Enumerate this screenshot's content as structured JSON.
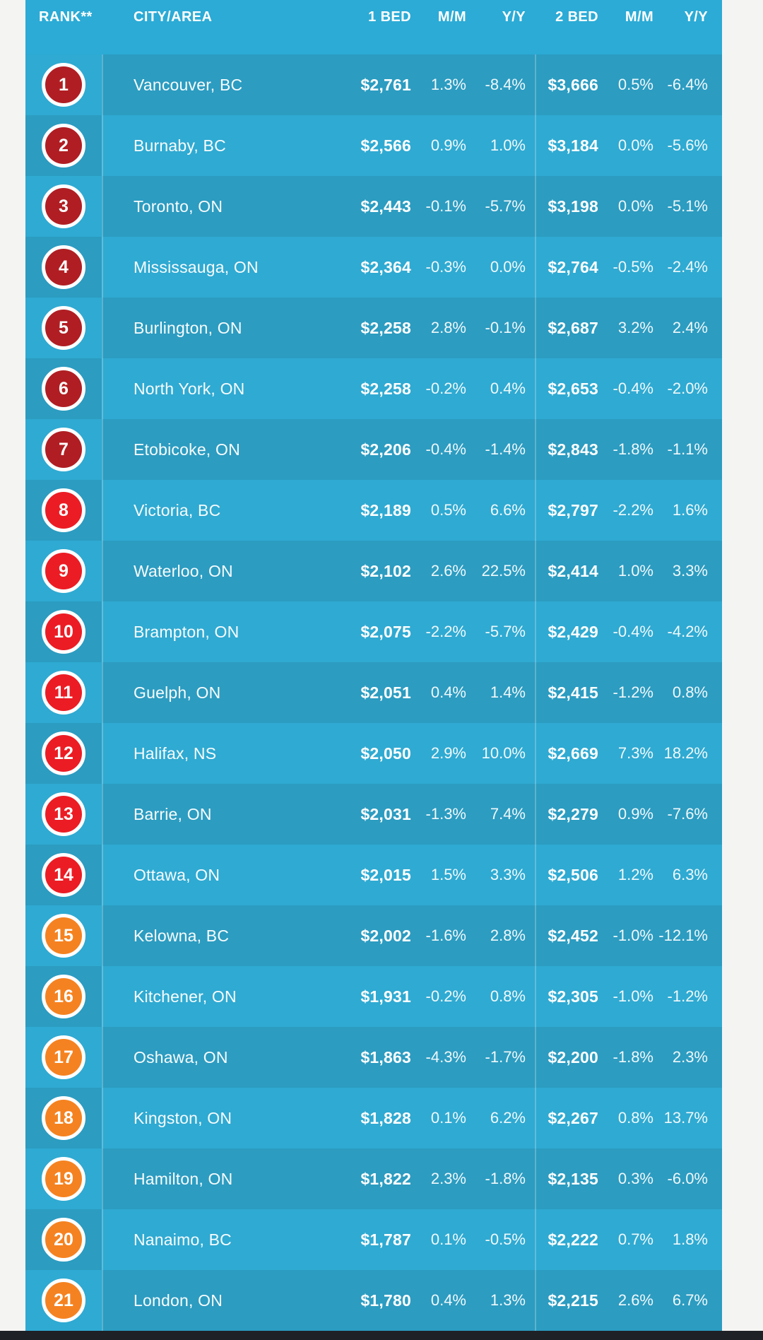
{
  "colors": {
    "page_bg": "#F4F4F3",
    "header_bg": "#2BABD6",
    "row_dark": "#2C9CC1",
    "row_light": "#2FAAD2",
    "divider": "rgba(255,255,255,0.24)",
    "text": "#FFFFFF",
    "bottom_bar": "#1E2126",
    "tier_dark_red": "#B01E23",
    "tier_red": "#EC1C24",
    "tier_orange": "#F58220",
    "badge_ring": "#FFFFFF"
  },
  "chart_data": {
    "type": "table",
    "title": "",
    "columns": [
      "RANK**",
      "CITY/AREA",
      "1 BED",
      "M/M",
      "Y/Y",
      "2 BED",
      "M/M",
      "Y/Y"
    ],
    "rows": [
      {
        "rank": "1",
        "tier": "dark_red",
        "city": "Vancouver, BC",
        "bed1": "$2,761",
        "bed1_mm": "1.3%",
        "bed1_yy": "-8.4%",
        "bed2": "$3,666",
        "bed2_mm": "0.5%",
        "bed2_yy": "-6.4%"
      },
      {
        "rank": "2",
        "tier": "dark_red",
        "city": "Burnaby, BC",
        "bed1": "$2,566",
        "bed1_mm": "0.9%",
        "bed1_yy": "1.0%",
        "bed2": "$3,184",
        "bed2_mm": "0.0%",
        "bed2_yy": "-5.6%"
      },
      {
        "rank": "3",
        "tier": "dark_red",
        "city": "Toronto, ON",
        "bed1": "$2,443",
        "bed1_mm": "-0.1%",
        "bed1_yy": "-5.7%",
        "bed2": "$3,198",
        "bed2_mm": "0.0%",
        "bed2_yy": "-5.1%"
      },
      {
        "rank": "4",
        "tier": "dark_red",
        "city": "Mississauga, ON",
        "bed1": "$2,364",
        "bed1_mm": "-0.3%",
        "bed1_yy": "0.0%",
        "bed2": "$2,764",
        "bed2_mm": "-0.5%",
        "bed2_yy": "-2.4%"
      },
      {
        "rank": "5",
        "tier": "dark_red",
        "city": "Burlington, ON",
        "bed1": "$2,258",
        "bed1_mm": "2.8%",
        "bed1_yy": "-0.1%",
        "bed2": "$2,687",
        "bed2_mm": "3.2%",
        "bed2_yy": "2.4%"
      },
      {
        "rank": "6",
        "tier": "dark_red",
        "city": "North York, ON",
        "bed1": "$2,258",
        "bed1_mm": "-0.2%",
        "bed1_yy": "0.4%",
        "bed2": "$2,653",
        "bed2_mm": "-0.4%",
        "bed2_yy": "-2.0%"
      },
      {
        "rank": "7",
        "tier": "dark_red",
        "city": "Etobicoke, ON",
        "bed1": "$2,206",
        "bed1_mm": "-0.4%",
        "bed1_yy": "-1.4%",
        "bed2": "$2,843",
        "bed2_mm": "-1.8%",
        "bed2_yy": "-1.1%"
      },
      {
        "rank": "8",
        "tier": "red",
        "city": "Victoria, BC",
        "bed1": "$2,189",
        "bed1_mm": "0.5%",
        "bed1_yy": "6.6%",
        "bed2": "$2,797",
        "bed2_mm": "-2.2%",
        "bed2_yy": "1.6%"
      },
      {
        "rank": "9",
        "tier": "red",
        "city": "Waterloo, ON",
        "bed1": "$2,102",
        "bed1_mm": "2.6%",
        "bed1_yy": "22.5%",
        "bed2": "$2,414",
        "bed2_mm": "1.0%",
        "bed2_yy": "3.3%"
      },
      {
        "rank": "10",
        "tier": "red",
        "city": "Brampton, ON",
        "bed1": "$2,075",
        "bed1_mm": "-2.2%",
        "bed1_yy": "-5.7%",
        "bed2": "$2,429",
        "bed2_mm": "-0.4%",
        "bed2_yy": "-4.2%"
      },
      {
        "rank": "11",
        "tier": "red",
        "city": "Guelph, ON",
        "bed1": "$2,051",
        "bed1_mm": "0.4%",
        "bed1_yy": "1.4%",
        "bed2": "$2,415",
        "bed2_mm": "-1.2%",
        "bed2_yy": "0.8%"
      },
      {
        "rank": "12",
        "tier": "red",
        "city": "Halifax, NS",
        "bed1": "$2,050",
        "bed1_mm": "2.9%",
        "bed1_yy": "10.0%",
        "bed2": "$2,669",
        "bed2_mm": "7.3%",
        "bed2_yy": "18.2%"
      },
      {
        "rank": "13",
        "tier": "red",
        "city": "Barrie, ON",
        "bed1": "$2,031",
        "bed1_mm": "-1.3%",
        "bed1_yy": "7.4%",
        "bed2": "$2,279",
        "bed2_mm": "0.9%",
        "bed2_yy": "-7.6%"
      },
      {
        "rank": "14",
        "tier": "red",
        "city": "Ottawa, ON",
        "bed1": "$2,015",
        "bed1_mm": "1.5%",
        "bed1_yy": "3.3%",
        "bed2": "$2,506",
        "bed2_mm": "1.2%",
        "bed2_yy": "6.3%"
      },
      {
        "rank": "15",
        "tier": "orange",
        "city": "Kelowna, BC",
        "bed1": "$2,002",
        "bed1_mm": "-1.6%",
        "bed1_yy": "2.8%",
        "bed2": "$2,452",
        "bed2_mm": "-1.0%",
        "bed2_yy": "-12.1%"
      },
      {
        "rank": "16",
        "tier": "orange",
        "city": "Kitchener, ON",
        "bed1": "$1,931",
        "bed1_mm": "-0.2%",
        "bed1_yy": "0.8%",
        "bed2": "$2,305",
        "bed2_mm": "-1.0%",
        "bed2_yy": "-1.2%"
      },
      {
        "rank": "17",
        "tier": "orange",
        "city": "Oshawa, ON",
        "bed1": "$1,863",
        "bed1_mm": "-4.3%",
        "bed1_yy": "-1.7%",
        "bed2": "$2,200",
        "bed2_mm": "-1.8%",
        "bed2_yy": "2.3%"
      },
      {
        "rank": "18",
        "tier": "orange",
        "city": "Kingston, ON",
        "bed1": "$1,828",
        "bed1_mm": "0.1%",
        "bed1_yy": "6.2%",
        "bed2": "$2,267",
        "bed2_mm": "0.8%",
        "bed2_yy": "13.7%"
      },
      {
        "rank": "19",
        "tier": "orange",
        "city": "Hamilton, ON",
        "bed1": "$1,822",
        "bed1_mm": "2.3%",
        "bed1_yy": "-1.8%",
        "bed2": "$2,135",
        "bed2_mm": "0.3%",
        "bed2_yy": "-6.0%"
      },
      {
        "rank": "20",
        "tier": "orange",
        "city": "Nanaimo, BC",
        "bed1": "$1,787",
        "bed1_mm": "0.1%",
        "bed1_yy": "-0.5%",
        "bed2": "$2,222",
        "bed2_mm": "0.7%",
        "bed2_yy": "1.8%"
      },
      {
        "rank": "21",
        "tier": "orange",
        "city": "London, ON",
        "bed1": "$1,780",
        "bed1_mm": "0.4%",
        "bed1_yy": "1.3%",
        "bed2": "$2,215",
        "bed2_mm": "2.6%",
        "bed2_yy": "6.7%"
      }
    ]
  }
}
